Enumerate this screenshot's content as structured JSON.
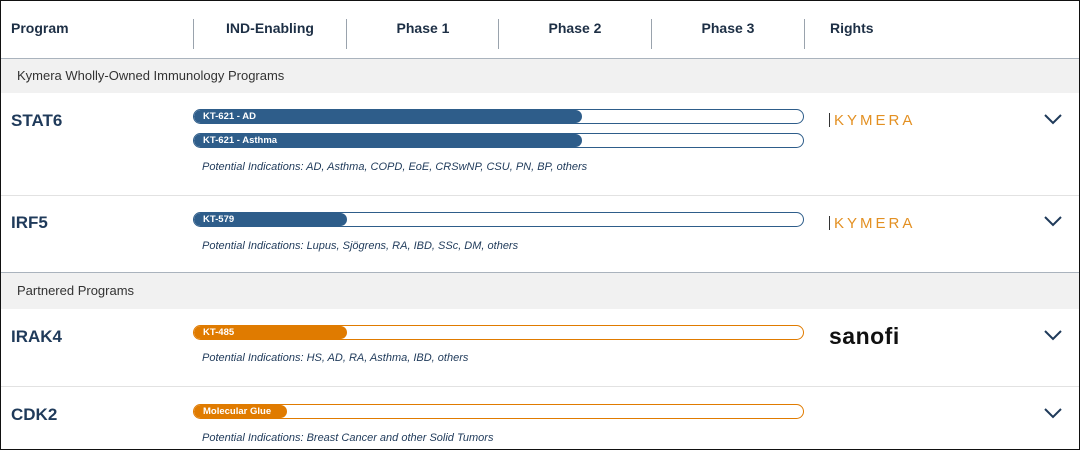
{
  "header": {
    "columns": [
      "Program",
      "IND-Enabling",
      "Phase 1",
      "Phase 2",
      "Phase 3",
      "Rights"
    ]
  },
  "sections": [
    {
      "title": "Kymera Wholly-Owned Immunology Programs",
      "programs": [
        {
          "name": "STAT6",
          "bars": [
            "KT-621 - AD",
            "KT-621 - Asthma"
          ],
          "indications": "Potential Indications: AD, Asthma, COPD, EoE, CRSwNP, CSU, PN, BP, others",
          "rights": "KYMERA"
        },
        {
          "name": "IRF5",
          "bars": [
            "KT-579"
          ],
          "indications": "Potential Indications: Lupus, Sjögrens, RA, IBD, SSc, DM, others",
          "rights": "KYMERA"
        }
      ]
    },
    {
      "title": "Partnered Programs",
      "programs": [
        {
          "name": "IRAK4",
          "bars": [
            "KT-485"
          ],
          "indications": "Potential Indications: HS, AD, RA, Asthma, IBD, others",
          "rights": "sanofi"
        },
        {
          "name": "CDK2",
          "bars": [
            "Molecular Glue"
          ],
          "indications": "Potential Indications: Breast Cancer and other Solid Tumors"
        }
      ]
    }
  ]
}
